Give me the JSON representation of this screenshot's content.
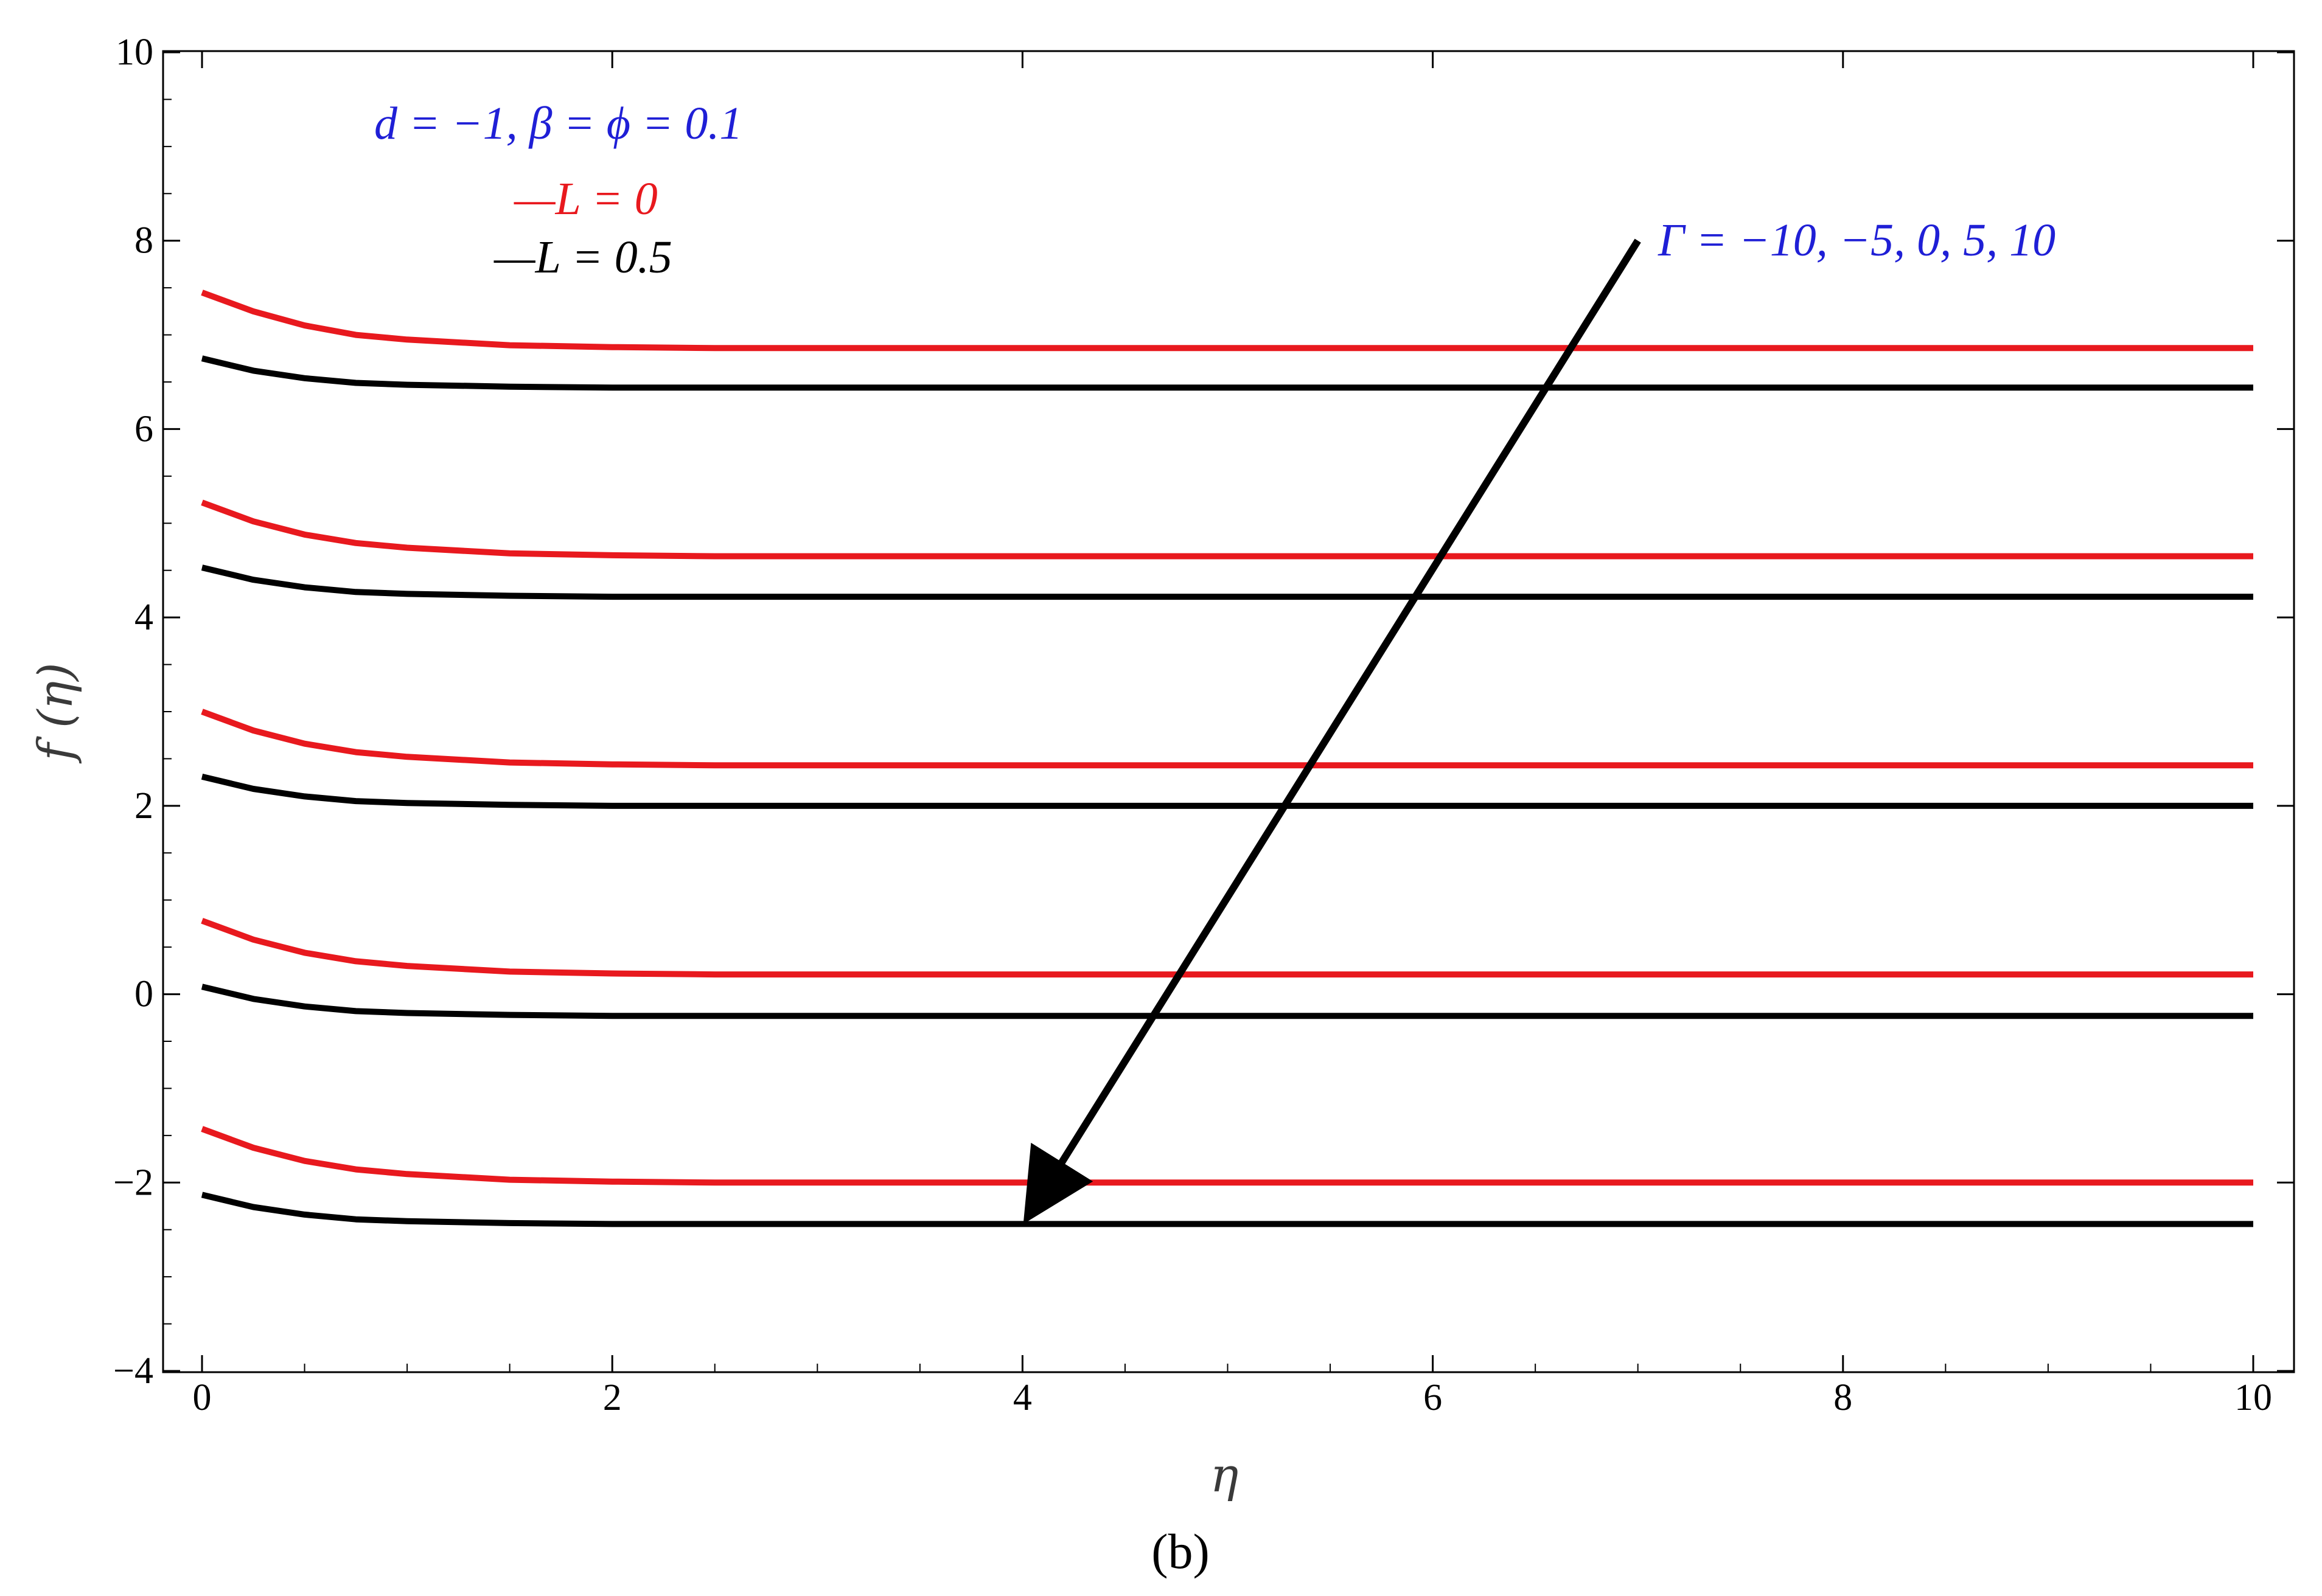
{
  "chart_data": {
    "type": "line",
    "xlabel": "η",
    "ylabel": "f (η)",
    "xlim": [
      0,
      10
    ],
    "ylim": [
      -4,
      10
    ],
    "x_ticks": [
      "0",
      "2",
      "4",
      "6",
      "8",
      "10"
    ],
    "y_ticks": [
      "−4",
      "−2",
      "0",
      "2",
      "4",
      "6",
      "8",
      "10"
    ],
    "x_tick_values": [
      0,
      2,
      4,
      6,
      8,
      10
    ],
    "y_tick_values": [
      -4,
      -2,
      0,
      2,
      4,
      6,
      8,
      10
    ],
    "grid": false,
    "legend": {
      "placement": "top-left",
      "params_label": "d = −1, β = ϕ = 0.1",
      "entries": [
        {
          "label": "—L = 0",
          "color": "#e8191e"
        },
        {
          "label": "—L = 0.5",
          "color": "#000000"
        }
      ]
    },
    "annotation": {
      "text": "Γ = −10, −5, 0, 5, 10",
      "arrow_from": [
        7.0,
        8.0
      ],
      "arrow_to": [
        4.0,
        -2.45
      ]
    },
    "x": [
      0,
      0.25,
      0.5,
      0.75,
      1,
      1.5,
      2,
      2.5,
      3,
      4,
      5,
      6,
      7,
      8,
      9,
      10
    ],
    "series": [
      {
        "group": "L = 0",
        "gamma": -10,
        "color": "#e8191e",
        "values": [
          7.45,
          7.25,
          7.1,
          7.0,
          6.95,
          6.89,
          6.87,
          6.86,
          6.86,
          6.86,
          6.86,
          6.86,
          6.86,
          6.86,
          6.86,
          6.86
        ]
      },
      {
        "group": "L = 0.5",
        "gamma": -10,
        "color": "#000000",
        "values": [
          6.75,
          6.62,
          6.54,
          6.49,
          6.47,
          6.45,
          6.44,
          6.44,
          6.44,
          6.44,
          6.44,
          6.44,
          6.44,
          6.44,
          6.44,
          6.44
        ]
      },
      {
        "group": "L = 0",
        "gamma": -5,
        "color": "#e8191e",
        "values": [
          5.22,
          5.02,
          4.88,
          4.79,
          4.74,
          4.68,
          4.66,
          4.65,
          4.65,
          4.65,
          4.65,
          4.65,
          4.65,
          4.65,
          4.65,
          4.65
        ]
      },
      {
        "group": "L = 0.5",
        "gamma": -5,
        "color": "#000000",
        "values": [
          4.53,
          4.4,
          4.32,
          4.27,
          4.25,
          4.23,
          4.22,
          4.22,
          4.22,
          4.22,
          4.22,
          4.22,
          4.22,
          4.22,
          4.22,
          4.22
        ]
      },
      {
        "group": "L = 0",
        "gamma": 0,
        "color": "#e8191e",
        "values": [
          3.0,
          2.8,
          2.66,
          2.57,
          2.52,
          2.46,
          2.44,
          2.43,
          2.43,
          2.43,
          2.43,
          2.43,
          2.43,
          2.43,
          2.43,
          2.43
        ]
      },
      {
        "group": "L = 0.5",
        "gamma": 0,
        "color": "#000000",
        "values": [
          2.31,
          2.18,
          2.1,
          2.05,
          2.03,
          2.01,
          2.0,
          2.0,
          2.0,
          2.0,
          2.0,
          2.0,
          2.0,
          2.0,
          2.0,
          2.0
        ]
      },
      {
        "group": "L = 0",
        "gamma": 5,
        "color": "#e8191e",
        "values": [
          0.78,
          0.58,
          0.44,
          0.35,
          0.3,
          0.24,
          0.22,
          0.21,
          0.21,
          0.21,
          0.21,
          0.21,
          0.21,
          0.21,
          0.21,
          0.21
        ]
      },
      {
        "group": "L = 0.5",
        "gamma": 5,
        "color": "#000000",
        "values": [
          0.08,
          -0.05,
          -0.13,
          -0.18,
          -0.2,
          -0.22,
          -0.23,
          -0.23,
          -0.23,
          -0.23,
          -0.23,
          -0.23,
          -0.23,
          -0.23,
          -0.23,
          -0.23
        ]
      },
      {
        "group": "L = 0",
        "gamma": 10,
        "color": "#e8191e",
        "values": [
          -1.43,
          -1.63,
          -1.77,
          -1.86,
          -1.91,
          -1.97,
          -1.99,
          -2.0,
          -2.0,
          -2.0,
          -2.0,
          -2.0,
          -2.0,
          -2.0,
          -2.0,
          -2.0
        ]
      },
      {
        "group": "L = 0.5",
        "gamma": 10,
        "color": "#000000",
        "values": [
          -2.13,
          -2.26,
          -2.34,
          -2.39,
          -2.41,
          -2.43,
          -2.44,
          -2.44,
          -2.44,
          -2.44,
          -2.44,
          -2.44,
          -2.44,
          -2.44,
          -2.44,
          -2.44
        ]
      }
    ]
  },
  "panel_label": "(b)",
  "colors": {
    "params_text": "#1f1fd6",
    "annotation_text": "#1f1fd6",
    "axes": "#000000"
  }
}
